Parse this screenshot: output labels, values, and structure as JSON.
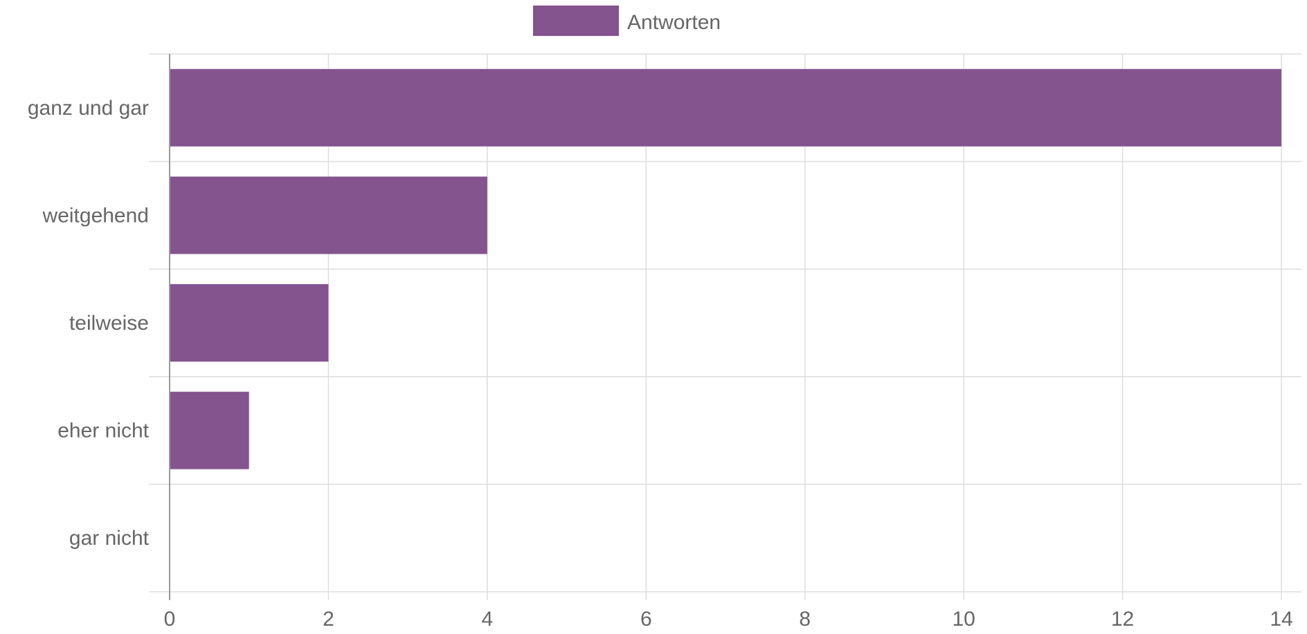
{
  "chart_data": {
    "type": "bar",
    "orientation": "horizontal",
    "categories": [
      "ganz und gar",
      "weitgehend",
      "teilweise",
      "eher nicht",
      "gar nicht"
    ],
    "series": [
      {
        "name": "Antworten",
        "values": [
          14,
          4,
          2,
          1,
          0
        ],
        "color": "#84548F"
      }
    ],
    "xlim": [
      0,
      14
    ],
    "xticks": [
      0,
      2,
      4,
      6,
      8,
      10,
      12,
      14
    ],
    "grid": true,
    "legend_position": "top-center"
  }
}
